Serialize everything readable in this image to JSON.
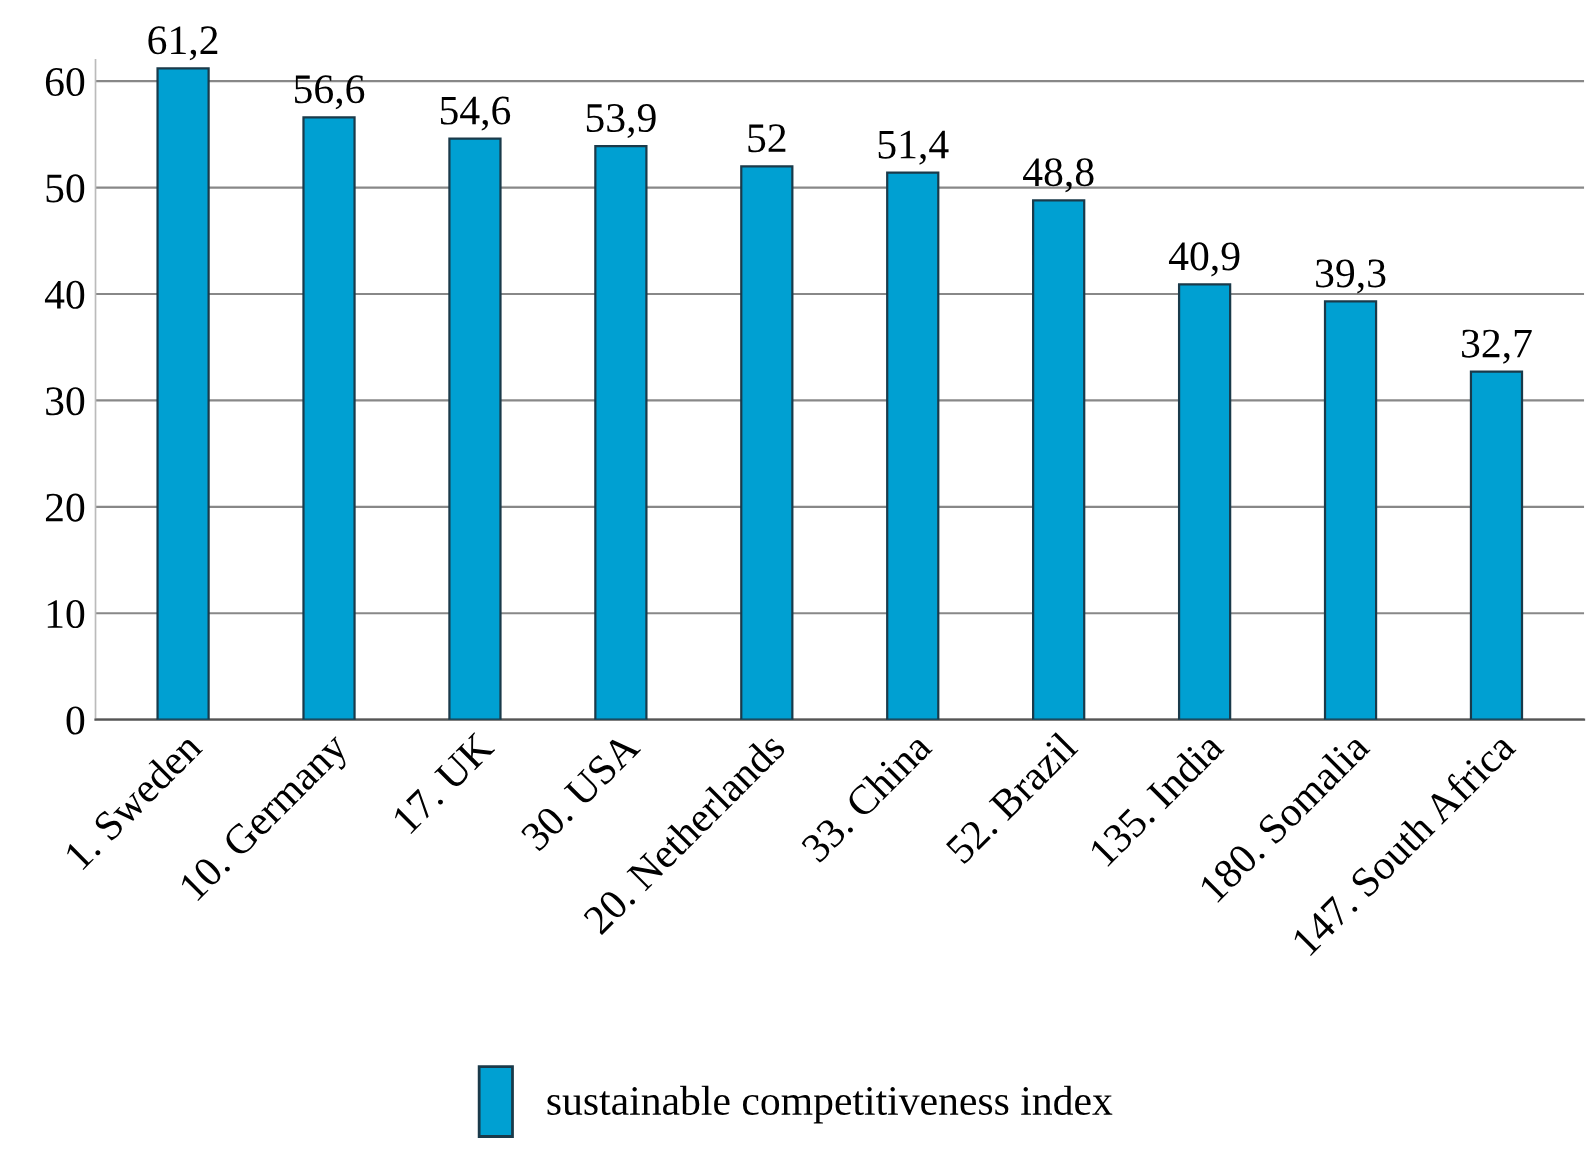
{
  "chart_data": {
    "type": "bar",
    "categories": [
      "1. Sweden",
      "10. Germany",
      "17. UK",
      "30. USA",
      "20. Netherlands",
      "33. China",
      "52. Brazil",
      "135. India",
      "180. Somalia",
      "147. South Africa"
    ],
    "series": [
      {
        "name": "sustainable competitiveness index",
        "color": "#00a0d2",
        "values": [
          61.2,
          56.6,
          54.6,
          53.9,
          52,
          51.4,
          48.8,
          40.9,
          39.3,
          32.7
        ],
        "value_labels": [
          "61,2",
          "56,6",
          "54,6",
          "53,9",
          "52",
          "51,4",
          "48,8",
          "40,9",
          "39,3",
          "32,7"
        ]
      }
    ],
    "ylim": [
      0,
      62
    ],
    "yticks": [
      0,
      10,
      20,
      30,
      40,
      50,
      60
    ],
    "grid": "y",
    "legend": "bottom"
  }
}
